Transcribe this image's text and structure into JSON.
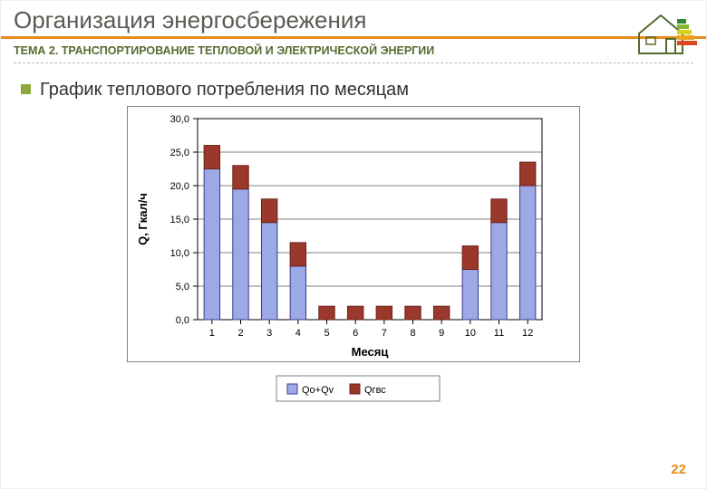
{
  "header": {
    "title": "Организация энергосбережения",
    "subtitle": "ТЕМА 2. ТРАНСПОРТИРОВАНИЕ ТЕПЛОВОЙ И ЭЛЕКТРИЧЕСКОЙ ЭНЕРГИИ"
  },
  "bullet": {
    "text": "График теплового потребления по месяцам"
  },
  "page_number": "22",
  "chart": {
    "type": "stacked-bar",
    "categories": [
      "1",
      "2",
      "3",
      "4",
      "5",
      "6",
      "7",
      "8",
      "9",
      "10",
      "11",
      "12"
    ],
    "series": [
      {
        "name": "Qо+Qv",
        "color": "#9da8e6",
        "border": "#3b3b8a",
        "values": [
          22.5,
          19.5,
          14.5,
          8.0,
          0.0,
          0.0,
          0.0,
          0.0,
          0.0,
          7.5,
          14.5,
          20.0
        ]
      },
      {
        "name": "Qгвс",
        "color": "#9a382b",
        "border": "#6b2219",
        "values": [
          3.5,
          3.5,
          3.5,
          3.5,
          2.0,
          2.0,
          2.0,
          2.0,
          2.0,
          3.5,
          3.5,
          3.5
        ]
      }
    ],
    "ylabel": "Q, Гкал/ч",
    "xlabel": "Месяц",
    "ylim": [
      0,
      30
    ],
    "ytick_step": 5,
    "y_decimals": 1,
    "bar_width": 0.55,
    "plot_bg": "#ffffff",
    "grid_color": "#000000",
    "grid_width": 0.6,
    "axis_color": "#000000",
    "tick_fontsize": 11,
    "label_fontsize": 13,
    "label_fontweight": "bold",
    "legend_border": "#808080",
    "legend_fontsize": 11
  }
}
